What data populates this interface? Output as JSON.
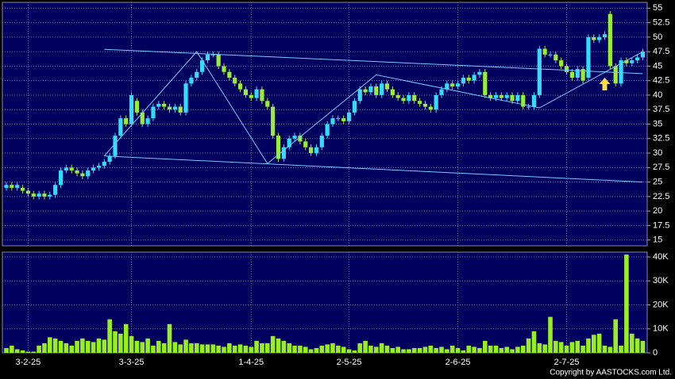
{
  "chart_data": [
    {
      "type": "candlestick",
      "categories": [
        null,
        null,
        null,
        null,
        "3-2-25",
        null,
        null,
        null,
        null,
        null,
        null,
        null,
        null,
        null,
        null,
        null,
        null,
        null,
        null,
        null,
        null,
        null,
        null,
        "3-3-25",
        null,
        null,
        null,
        null,
        null,
        null,
        null,
        null,
        null,
        null,
        null,
        null,
        null,
        null,
        null,
        null,
        null,
        null,
        null,
        null,
        null,
        "1-4-25",
        null,
        null,
        null,
        null,
        null,
        null,
        null,
        null,
        null,
        null,
        null,
        null,
        null,
        null,
        null,
        null,
        null,
        "2-5-25",
        null,
        null,
        null,
        null,
        null,
        null,
        null,
        null,
        null,
        null,
        null,
        null,
        null,
        null,
        null,
        null,
        null,
        null,
        null,
        "2-6-25",
        null,
        null,
        null,
        null,
        null,
        null,
        null,
        null,
        null,
        null,
        null,
        null,
        null,
        null,
        null,
        null,
        null,
        null,
        null,
        "2-7-25",
        null,
        null,
        null,
        null,
        null,
        null,
        null,
        null,
        null,
        null,
        null,
        null,
        null,
        null
      ],
      "open": [
        24,
        24.5,
        24,
        24,
        23.5,
        23,
        22.5,
        23,
        22.5,
        22.8,
        24.5,
        27,
        27.5,
        27,
        26.5,
        26,
        27,
        27.5,
        27.8,
        28.5,
        29.5,
        33,
        36,
        35,
        39,
        37,
        35,
        36,
        38,
        38.5,
        38,
        37.5,
        38,
        37,
        42,
        43,
        44,
        46,
        47,
        47,
        45,
        44,
        43,
        42,
        41,
        40,
        39.5,
        41,
        39,
        38,
        33,
        29,
        31,
        32.5,
        33,
        32,
        31,
        30,
        31,
        33,
        35,
        36,
        36,
        35.5,
        37,
        39,
        41,
        40.5,
        41.5,
        40,
        42,
        41,
        40,
        39.5,
        39,
        40,
        39,
        38.5,
        38,
        37.5,
        40,
        41,
        42,
        41.5,
        42,
        43,
        42.5,
        43.5,
        44,
        40,
        39.5,
        40,
        39.5,
        40,
        39,
        40,
        38,
        38,
        40,
        48,
        47,
        47,
        46,
        45,
        44,
        43,
        44.5,
        43,
        50,
        49.5,
        50,
        54,
        45,
        42,
        46,
        45.5,
        46,
        46.5
      ],
      "high": [
        25,
        25,
        25,
        24.5,
        24,
        23.5,
        23.5,
        23.5,
        23.3,
        25,
        27.5,
        28,
        28,
        27.5,
        27,
        27.5,
        28,
        28.3,
        29,
        30,
        33.5,
        36.5,
        36.5,
        40.5,
        39.5,
        37.5,
        36.5,
        38.5,
        39,
        39,
        38.5,
        38.5,
        38.5,
        42.5,
        43.5,
        44.5,
        46.5,
        47.5,
        47.5,
        47.5,
        45.5,
        44.5,
        43.5,
        42.5,
        41.5,
        40.5,
        41.5,
        41.5,
        39.5,
        38.5,
        33.5,
        31.5,
        33,
        33.5,
        33.5,
        32.5,
        31.5,
        31.5,
        33.5,
        35.5,
        36.5,
        36.5,
        36.5,
        37.5,
        39.5,
        41.5,
        41.5,
        42,
        42,
        42.5,
        42.5,
        41.5,
        40.5,
        40,
        40.5,
        40.5,
        39.5,
        39,
        38.5,
        40.5,
        41.5,
        42.5,
        42.5,
        42.5,
        43.5,
        43.5,
        44,
        44.5,
        44.5,
        40.5,
        40.5,
        40.5,
        40.5,
        40.5,
        40.5,
        40.5,
        38.5,
        40.5,
        48.5,
        48.5,
        47.5,
        47.5,
        46.5,
        45.5,
        44.5,
        45,
        45,
        50.5,
        50.5,
        50.5,
        51,
        54.5,
        45.5,
        46.5,
        46.5,
        46.5,
        47,
        48
      ],
      "low": [
        23.5,
        23.5,
        23.5,
        23,
        22.5,
        22,
        22,
        22,
        22,
        22.3,
        24,
        26.5,
        26.5,
        26,
        25.5,
        25.5,
        26.5,
        27,
        27.3,
        28,
        29,
        32.5,
        34.5,
        34.5,
        36.5,
        34.5,
        34.5,
        35.5,
        37.5,
        37.5,
        37,
        37,
        36.5,
        36.5,
        41.5,
        42.5,
        43.5,
        45.5,
        46.5,
        44.5,
        43.5,
        42.5,
        41.5,
        40.5,
        39.5,
        39,
        39,
        38.5,
        37.5,
        32.5,
        28.5,
        28.5,
        30.5,
        32,
        31.5,
        30.5,
        29.5,
        29.5,
        30.5,
        32.5,
        34.5,
        35.5,
        35,
        35,
        36.5,
        38.5,
        40,
        40,
        39.5,
        39.5,
        40.5,
        39.5,
        39,
        38.5,
        38.5,
        38.5,
        38,
        37.5,
        37,
        37,
        39.5,
        40.5,
        41,
        41,
        41.5,
        42,
        42,
        43,
        39.5,
        39,
        39,
        39,
        39,
        38.5,
        38.5,
        37.5,
        37.5,
        37.5,
        39.5,
        46.5,
        46.5,
        45.5,
        44.5,
        43.5,
        42.5,
        42.5,
        42,
        42.5,
        49,
        49,
        49.5,
        44.5,
        41.5,
        41.5,
        45,
        45,
        45.5,
        46
      ],
      "close": [
        24.5,
        24,
        24.5,
        23.5,
        23,
        22.5,
        23,
        22.5,
        22.8,
        24.5,
        27,
        27.5,
        27,
        26.5,
        26,
        27,
        27.5,
        27.8,
        28.5,
        29.5,
        33,
        36,
        35,
        40,
        37,
        35,
        36,
        38,
        38.5,
        38,
        37.5,
        38,
        37,
        42,
        43,
        44,
        46,
        47,
        47,
        45,
        44,
        43,
        42,
        41,
        40,
        39.5,
        41,
        39,
        38,
        33,
        29,
        31,
        32.5,
        33,
        32,
        31,
        30,
        31,
        33,
        35,
        36,
        36,
        35.5,
        37,
        39,
        41,
        40.5,
        41.5,
        40,
        42,
        41,
        40,
        39.5,
        39,
        40,
        39,
        38.5,
        38,
        37.5,
        40,
        41,
        42,
        41.5,
        42,
        43,
        42.5,
        43.5,
        44,
        40,
        39.5,
        40,
        39.5,
        40,
        39,
        40,
        38,
        38,
        40,
        48,
        47,
        47,
        46,
        45,
        44,
        43,
        44.5,
        42.5,
        50,
        49.5,
        50,
        50.5,
        45,
        42,
        46,
        45.5,
        46,
        46.5,
        47.5
      ],
      "up_color": "#33ddff",
      "down_color": "#99ee33",
      "ylim": [
        14,
        56
      ],
      "yticks": [
        15,
        17.5,
        20,
        22.5,
        25,
        27.5,
        30,
        32.5,
        35,
        37.5,
        40,
        42.5,
        45,
        47.5,
        50,
        52.5,
        55
      ],
      "grid": true,
      "trendlines": [
        {
          "x": [
            18,
            117
          ],
          "y": [
            47.9,
            43.7
          ]
        },
        {
          "x": [
            18,
            117
          ],
          "y": [
            29.5,
            25
          ]
        },
        {
          "x": [
            18,
            35,
            48,
            68,
            98,
            117
          ],
          "y": [
            29.5,
            47.5,
            28.2,
            43.5,
            37.8,
            47.5
          ]
        }
      ],
      "trendline_color": "#77ccff",
      "arrow": {
        "x": 110,
        "y": 43
      },
      "arrow_color": "#ffdd44"
    },
    {
      "type": "bar",
      "values": [
        2000,
        3000,
        1500,
        1000,
        500,
        500,
        3000,
        4000,
        6500,
        6000,
        5000,
        4000,
        3000,
        5000,
        6000,
        5000,
        4500,
        6000,
        5500,
        14000,
        9000,
        8000,
        12000,
        7000,
        5000,
        4500,
        6000,
        3000,
        5000,
        4000,
        12000,
        4500,
        3500,
        5500,
        4000,
        4000,
        3500,
        3500,
        3500,
        3000,
        2500,
        4000,
        3000,
        3500,
        3000,
        2500,
        5000,
        4000,
        4000,
        7000,
        6000,
        5000,
        4000,
        3000,
        3000,
        2500,
        1500,
        2000,
        3000,
        3500,
        4000,
        3000,
        2500,
        1500,
        1000,
        4000,
        5000,
        3000,
        2500,
        4000,
        3000,
        2000,
        2500,
        1500,
        1500,
        2000,
        2000,
        2500,
        3000,
        2000,
        2500,
        1500,
        3000,
        2000,
        1000,
        3000,
        2500,
        2000,
        5000,
        3000,
        3000,
        2000,
        2500,
        1500,
        2500,
        3000,
        6000,
        9000,
        4000,
        3500,
        15000,
        5000,
        4500,
        3000,
        4500,
        5000,
        3000,
        6000,
        7500,
        8000,
        3000,
        2500,
        14000,
        3000,
        41000,
        8000,
        6000,
        5000
      ],
      "color": "#99ee22",
      "ylim": [
        0,
        42000
      ],
      "yticks": [
        0,
        {
          "value": 10000,
          "label": "10K"
        },
        {
          "value": 20000,
          "label": "20K"
        },
        {
          "value": 30000,
          "label": "30K"
        },
        {
          "value": 40000,
          "label": "40K"
        }
      ],
      "grid": true,
      "footer": "Copyright by AASTOCKS.com Ltd."
    }
  ]
}
